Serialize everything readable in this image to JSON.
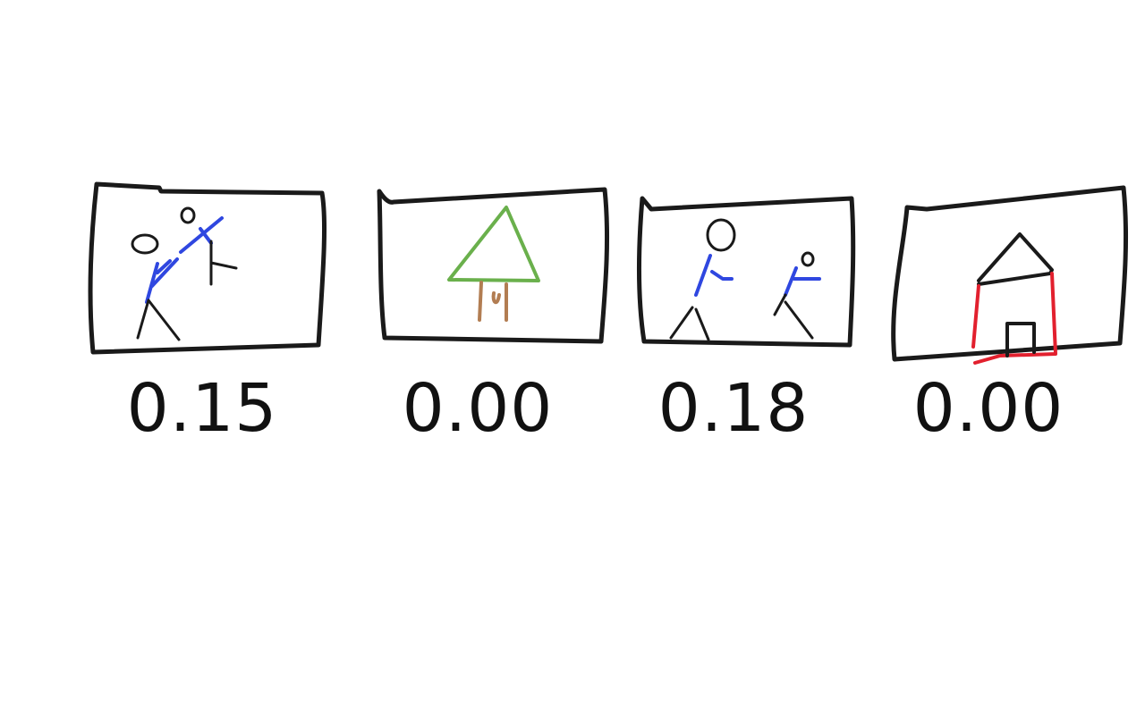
{
  "colors": {
    "frame": "#1a1a1a",
    "figure_blue": "#2f47e0",
    "figure_dark": "#1a1a1a",
    "tree_green": "#6ab04c",
    "trunk_brown": "#b27d52",
    "house_red": "#e2202e",
    "house_roof": "#1a1a1a",
    "text": "#111111"
  },
  "panels": [
    {
      "subject": "two stick figures fighting",
      "score": "0.15"
    },
    {
      "subject": "tree",
      "score": "0.00"
    },
    {
      "subject": "two stick figures",
      "score": "0.18"
    },
    {
      "subject": "house",
      "score": "0.00"
    }
  ]
}
